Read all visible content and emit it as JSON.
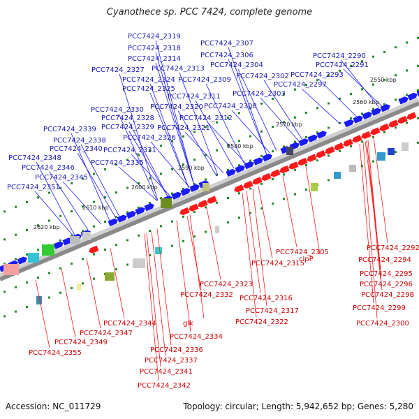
{
  "title": "Cyanothece sp. PCC 7424, complete genome",
  "footer": {
    "accession": "Accession: NC_011729",
    "summary": "Topology: circular; Length: 5,942,652 bp; Genes: 5,280"
  },
  "colors": {
    "forward_gene": "#1a1aff",
    "reverse_gene": "#ff1a1a",
    "forward_label": "#1a1ab4",
    "reverse_label": "#cc0000",
    "backbone": "#8a8a8a",
    "tick": "#228b22"
  },
  "kbp_ticks": [
    "2550 kbp",
    "2560 kbp",
    "2570 kbp",
    "2580 kbp",
    "2590 kbp",
    "2600 kbp",
    "2610 kbp",
    "2620 kbp"
  ],
  "forward_labels": [
    "PCC7424_2319",
    "PCC7424_2318",
    "PCC7424_2314",
    "PCC7424_2313",
    "PCC7424_2307",
    "PCC7424_2306",
    "PCC7424_2304",
    "PCC7424_2327",
    "PCC7424_2324",
    "PCC7424_2325",
    "PCC7424_2309",
    "PCC7424_2302",
    "PCC7424_2303",
    "PCC7424_2311",
    "PCC7424_2320",
    "PCC7424_2308",
    "PCC7424_2330",
    "PCC7424_2328",
    "PCC7424_2329",
    "PCC7424_2312",
    "PCC7424_2321",
    "PCC7424_2326",
    "PCC7424_2339",
    "PCC7424_2338",
    "PCC7424_2340",
    "PCC7424_2331",
    "PCC7424_2348",
    "PCC7424_2335",
    "PCC7424_2346",
    "PCC7424_2345",
    "PCC7424_2351",
    "PCC7424_2290",
    "PCC7424_2291",
    "PCC7424_2293",
    "PCC7424_2297"
  ],
  "reverse_labels": [
    "PCC7424_2305",
    "clpP",
    "PCC7424_2315",
    "PCC7424_2292",
    "PCC7424_2294",
    "PCC7424_2295",
    "PCC7424_2296",
    "PCC7424_2298",
    "PCC7424_2299",
    "PCC7424_2300",
    "PCC7424_2323",
    "PCC7424_2332",
    "PCC7424_2316",
    "PCC7424_2317",
    "PCC7424_2322",
    "PCC7424_2344",
    "glk",
    "PCC7424_2347",
    "PCC7424_2334",
    "PCC7424_2349",
    "PCC7424_2336",
    "PCC7424_2355",
    "PCC7424_2337",
    "PCC7424_2341",
    "PCC7424_2342"
  ]
}
